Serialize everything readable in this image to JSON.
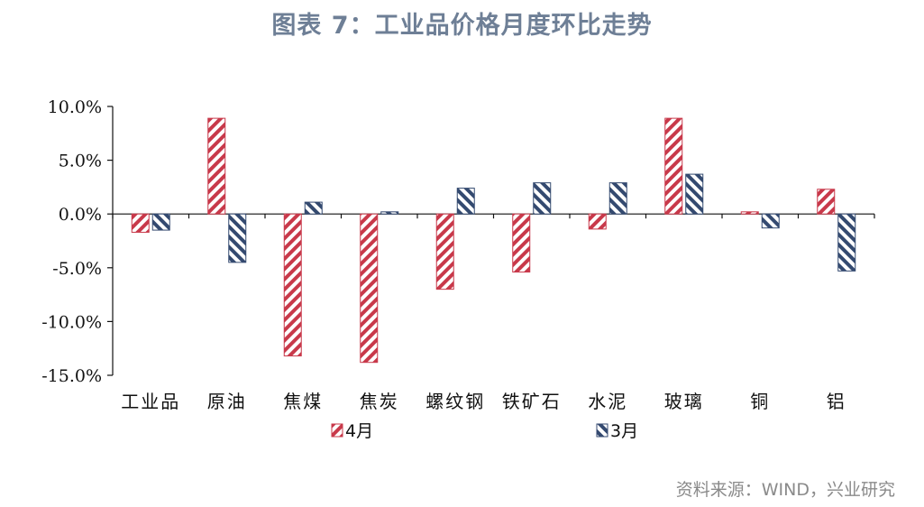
{
  "title": "图表 7：工业品价格月度环比走势",
  "source": "资料来源：WIND，兴业研究",
  "colors": {
    "apr": "#c8394a",
    "mar": "#344a70"
  },
  "chart_data": {
    "type": "bar",
    "categories": [
      "工业品",
      "原油",
      "焦煤",
      "焦炭",
      "螺纹钢",
      "铁矿石",
      "水泥",
      "玻璃",
      "铜",
      "铝"
    ],
    "series": [
      {
        "name": "4月",
        "values": [
          -1.7,
          8.9,
          -13.2,
          -13.8,
          -7.0,
          -5.4,
          -1.4,
          8.9,
          0.2,
          2.3
        ]
      },
      {
        "name": "3月",
        "values": [
          -1.5,
          -4.5,
          1.1,
          0.2,
          2.4,
          2.9,
          2.9,
          3.7,
          -1.3,
          -5.3
        ]
      }
    ],
    "yticks": [
      "10.0%",
      "5.0%",
      "0.0%",
      "-5.0%",
      "-10.0%",
      "-15.0%"
    ],
    "ylim": [
      -15,
      10
    ],
    "legend": "bottom"
  }
}
